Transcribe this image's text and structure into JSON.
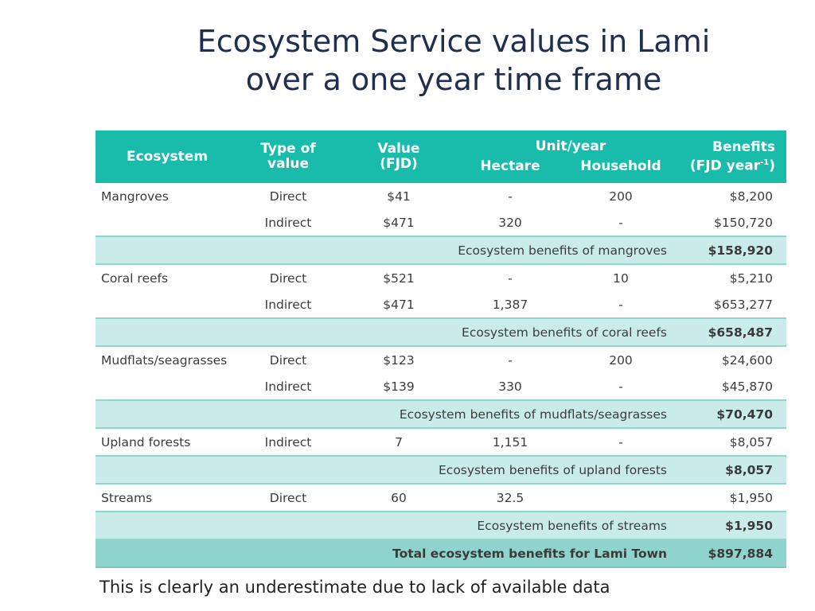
{
  "title": {
    "line1": "Ecosystem Service values in Lami",
    "line2": "over a one year time frame"
  },
  "table": {
    "headers": {
      "ecosystem": "Ecosystem",
      "type_line1": "Type of",
      "type_line2": "value",
      "value_line1": "Value",
      "value_line2": "(FJD)",
      "unit_year": "Unit/year",
      "hectare": "Hectare",
      "household": "Household",
      "benefits_line1": "Benefits",
      "benefits_line2": "(FJD year",
      "benefits_sup": "-1",
      "benefits_close": ")"
    },
    "groups": [
      {
        "rows": [
          {
            "ecosystem": "Mangroves",
            "type": "Direct",
            "value": "$41",
            "hectare": "-",
            "household": "200",
            "benefits": "$8,200"
          },
          {
            "ecosystem": "",
            "type": "Indirect",
            "value": "$471",
            "hectare": "320",
            "household": "-",
            "benefits": "$150,720"
          }
        ],
        "subtotal_label": "Ecosystem benefits of mangroves",
        "subtotal_value": "$158,920"
      },
      {
        "rows": [
          {
            "ecosystem": "Coral reefs",
            "type": "Direct",
            "value": "$521",
            "hectare": "-",
            "household": "10",
            "benefits": "$5,210"
          },
          {
            "ecosystem": "",
            "type": "Indirect",
            "value": "$471",
            "hectare": "1,387",
            "household": "-",
            "benefits": "$653,277"
          }
        ],
        "subtotal_label": "Ecosystem benefits of coral reefs",
        "subtotal_value": "$658,487"
      },
      {
        "rows": [
          {
            "ecosystem": "Mudflats/seagrasses",
            "type": "Direct",
            "value": "$123",
            "hectare": "-",
            "household": "200",
            "benefits": "$24,600"
          },
          {
            "ecosystem": "",
            "type": "Indirect",
            "value": "$139",
            "hectare": "330",
            "household": "-",
            "benefits": "$45,870"
          }
        ],
        "subtotal_label": "Ecosystem benefits of mudflats/seagrasses",
        "subtotal_value": "$70,470"
      },
      {
        "rows": [
          {
            "ecosystem": "Upland forests",
            "type": "Indirect",
            "value": "7",
            "hectare": "1,151",
            "household": "-",
            "benefits": "$8,057"
          }
        ],
        "subtotal_label": "Ecosystem benefits of upland forests",
        "subtotal_value": "$8,057"
      },
      {
        "rows": [
          {
            "ecosystem": "Streams",
            "type": "Direct",
            "value": "60",
            "hectare": "32.5",
            "household": "",
            "benefits": "$1,950"
          }
        ],
        "subtotal_label": "Ecosystem benefits of streams",
        "subtotal_value": "$1,950"
      }
    ],
    "total_label": "Total ecosystem benefits for Lami Town",
    "total_value": "$897,884"
  },
  "footnote": "This is clearly an underestimate due to lack of available data",
  "colors": {
    "header_bg": "#19bcaa",
    "subtotal_bg": "#c9ecea",
    "total_bg": "#8fd3cd",
    "title_text": "#1f2f4d"
  }
}
